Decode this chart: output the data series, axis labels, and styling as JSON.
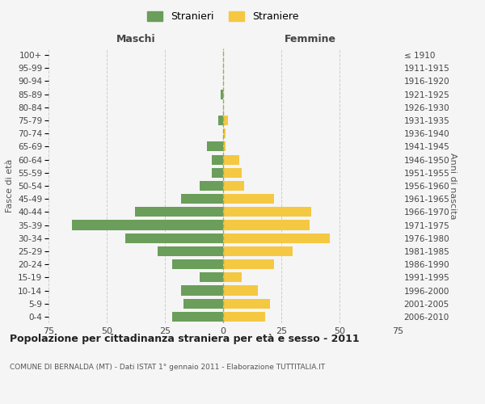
{
  "age_groups": [
    "0-4",
    "5-9",
    "10-14",
    "15-19",
    "20-24",
    "25-29",
    "30-34",
    "35-39",
    "40-44",
    "45-49",
    "50-54",
    "55-59",
    "60-64",
    "65-69",
    "70-74",
    "75-79",
    "80-84",
    "85-89",
    "90-94",
    "95-99",
    "100+"
  ],
  "birth_years": [
    "2006-2010",
    "2001-2005",
    "1996-2000",
    "1991-1995",
    "1986-1990",
    "1981-1985",
    "1976-1980",
    "1971-1975",
    "1966-1970",
    "1961-1965",
    "1956-1960",
    "1951-1955",
    "1946-1950",
    "1941-1945",
    "1936-1940",
    "1931-1935",
    "1926-1930",
    "1921-1925",
    "1916-1920",
    "1911-1915",
    "≤ 1910"
  ],
  "maschi": [
    22,
    17,
    18,
    10,
    22,
    28,
    42,
    65,
    38,
    18,
    10,
    5,
    5,
    7,
    0,
    2,
    0,
    1,
    0,
    0,
    0
  ],
  "femmine": [
    18,
    20,
    15,
    8,
    22,
    30,
    46,
    37,
    38,
    22,
    9,
    8,
    7,
    1,
    1,
    2,
    0,
    0,
    0,
    0,
    0
  ],
  "maschi_color": "#6a9e5a",
  "femmine_color": "#f5c842",
  "background_color": "#f5f5f5",
  "grid_color": "#cccccc",
  "title": "Popolazione per cittadinanza straniera per età e sesso - 2011",
  "subtitle": "COMUNE DI BERNALDA (MT) - Dati ISTAT 1° gennaio 2011 - Elaborazione TUTTITALIA.IT",
  "xlabel_left": "Maschi",
  "xlabel_right": "Femmine",
  "ylabel_left": "Fasce di età",
  "ylabel_right": "Anni di nascita",
  "xlim": 75,
  "legend_maschi": "Stranieri",
  "legend_femmine": "Straniere"
}
